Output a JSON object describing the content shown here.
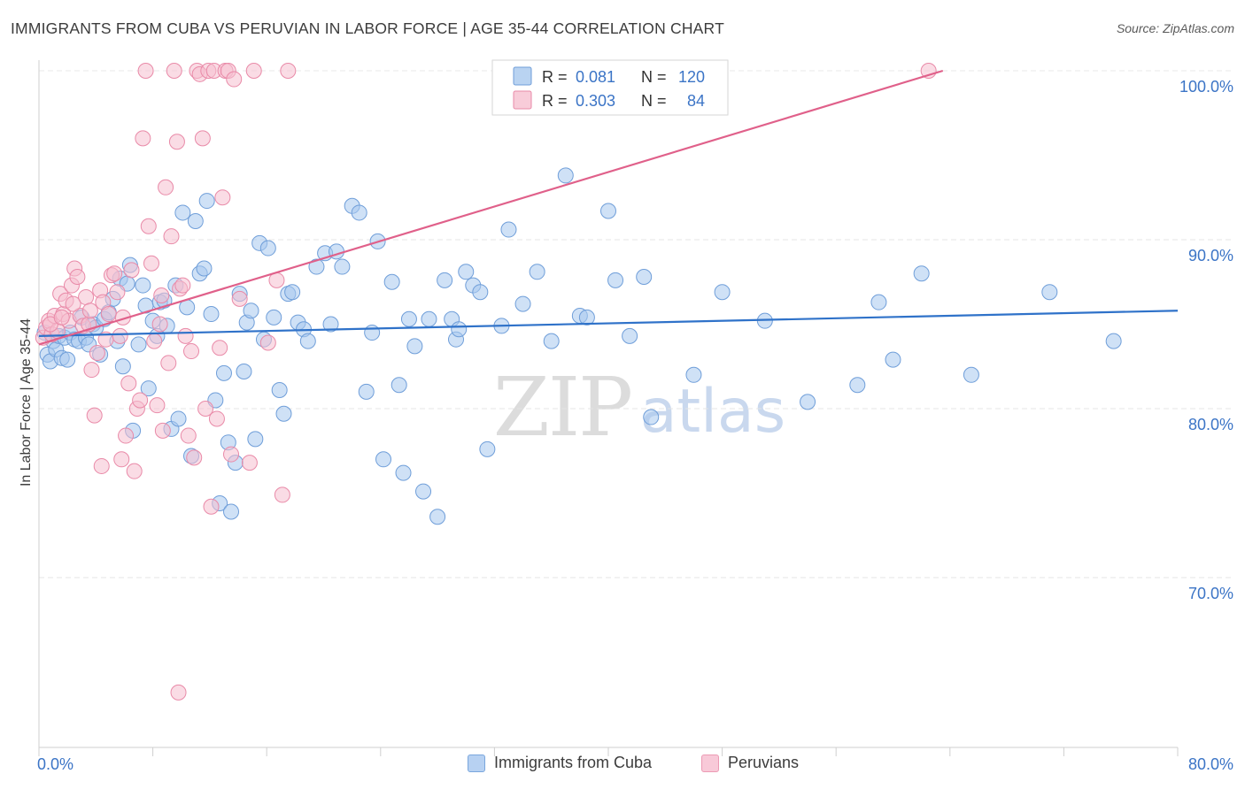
{
  "chart_data": {
    "type": "scatter",
    "title": "IMMIGRANTS FROM CUBA VS PERUVIAN IN LABOR FORCE | AGE 35-44 CORRELATION CHART",
    "source": "Source: ZipAtlas.com",
    "ylabel": "In Labor Force | Age 35-44",
    "xlim": [
      0,
      80
    ],
    "ylim": [
      60,
      102
    ],
    "x_tick_labels": [
      "0.0%",
      "80.0%"
    ],
    "y_ticks": [
      70,
      80,
      90,
      100
    ],
    "y_tick_labels": [
      "70.0%",
      "80.0%",
      "90.0%",
      "100.0%"
    ],
    "grid": true,
    "legend_position": "top-center",
    "watermark": "ZIPatlas",
    "series": [
      {
        "name": "Immigrants from Cuba",
        "color": "#a8c8ee",
        "stroke": "#6f9ed9",
        "line_color": "#2f72c9",
        "r_label": "R =",
        "r_value": "0.081",
        "n_label": "N =",
        "n_value": "120",
        "trend": [
          [
            0.0,
            84.3
          ],
          [
            80.0,
            85.8
          ]
        ],
        "points": [
          [
            0.4,
            84.5
          ],
          [
            0.6,
            83.2
          ],
          [
            0.8,
            82.8
          ],
          [
            1.0,
            84.0
          ],
          [
            1.2,
            83.5
          ],
          [
            1.4,
            84.3
          ],
          [
            1.6,
            83.0
          ],
          [
            1.8,
            84.2
          ],
          [
            2.0,
            82.9
          ],
          [
            2.2,
            84.5
          ],
          [
            2.5,
            84.1
          ],
          [
            2.8,
            84.0
          ],
          [
            3.0,
            85.4
          ],
          [
            3.3,
            84.2
          ],
          [
            3.5,
            83.8
          ],
          [
            3.8,
            85.0
          ],
          [
            4.0,
            84.8
          ],
          [
            4.3,
            83.2
          ],
          [
            4.6,
            85.3
          ],
          [
            4.9,
            85.7
          ],
          [
            5.2,
            86.5
          ],
          [
            5.5,
            84.0
          ],
          [
            5.7,
            87.7
          ],
          [
            5.9,
            82.5
          ],
          [
            6.2,
            87.4
          ],
          [
            6.4,
            88.5
          ],
          [
            6.6,
            78.7
          ],
          [
            7.0,
            83.8
          ],
          [
            7.3,
            87.3
          ],
          [
            7.5,
            86.1
          ],
          [
            7.7,
            81.2
          ],
          [
            8.0,
            85.2
          ],
          [
            8.3,
            84.3
          ],
          [
            8.5,
            86.3
          ],
          [
            8.8,
            86.4
          ],
          [
            9.0,
            84.9
          ],
          [
            9.3,
            78.8
          ],
          [
            9.6,
            87.3
          ],
          [
            9.8,
            79.4
          ],
          [
            10.1,
            91.6
          ],
          [
            10.4,
            86.0
          ],
          [
            10.7,
            77.2
          ],
          [
            11.0,
            91.1
          ],
          [
            11.3,
            88.0
          ],
          [
            11.6,
            88.3
          ],
          [
            11.8,
            92.3
          ],
          [
            12.1,
            85.6
          ],
          [
            12.4,
            80.5
          ],
          [
            12.7,
            74.4
          ],
          [
            13.0,
            82.1
          ],
          [
            13.3,
            78.0
          ],
          [
            13.5,
            73.9
          ],
          [
            13.8,
            76.8
          ],
          [
            14.1,
            86.8
          ],
          [
            14.4,
            82.2
          ],
          [
            14.6,
            85.1
          ],
          [
            14.9,
            85.8
          ],
          [
            15.2,
            78.2
          ],
          [
            15.5,
            89.8
          ],
          [
            15.8,
            84.1
          ],
          [
            16.1,
            89.5
          ],
          [
            16.5,
            85.4
          ],
          [
            16.9,
            81.1
          ],
          [
            17.2,
            79.7
          ],
          [
            17.5,
            86.8
          ],
          [
            17.8,
            86.9
          ],
          [
            18.2,
            85.1
          ],
          [
            18.6,
            84.7
          ],
          [
            18.9,
            84.0
          ],
          [
            19.5,
            88.4
          ],
          [
            20.1,
            89.2
          ],
          [
            20.5,
            85.0
          ],
          [
            20.9,
            89.3
          ],
          [
            21.3,
            88.4
          ],
          [
            22.0,
            92.0
          ],
          [
            22.5,
            91.6
          ],
          [
            23.0,
            81.0
          ],
          [
            23.4,
            84.5
          ],
          [
            23.8,
            89.9
          ],
          [
            24.2,
            77.0
          ],
          [
            24.8,
            87.5
          ],
          [
            25.3,
            81.4
          ],
          [
            25.6,
            76.2
          ],
          [
            26.0,
            85.3
          ],
          [
            26.4,
            83.7
          ],
          [
            27.0,
            75.1
          ],
          [
            27.4,
            85.3
          ],
          [
            28.0,
            73.6
          ],
          [
            28.5,
            87.6
          ],
          [
            29.0,
            85.3
          ],
          [
            29.3,
            84.1
          ],
          [
            29.5,
            84.7
          ],
          [
            30.0,
            88.1
          ],
          [
            30.5,
            87.3
          ],
          [
            31.0,
            86.9
          ],
          [
            31.5,
            77.6
          ],
          [
            32.5,
            84.9
          ],
          [
            33.0,
            90.6
          ],
          [
            34.0,
            86.2
          ],
          [
            35.0,
            88.1
          ],
          [
            36.0,
            84.0
          ],
          [
            37.0,
            93.8
          ],
          [
            38.0,
            85.5
          ],
          [
            38.5,
            85.4
          ],
          [
            40.0,
            91.7
          ],
          [
            40.5,
            87.6
          ],
          [
            41.5,
            84.3
          ],
          [
            42.5,
            87.8
          ],
          [
            43.0,
            79.5
          ],
          [
            46.0,
            82.0
          ],
          [
            48.0,
            86.9
          ],
          [
            51.0,
            85.2
          ],
          [
            54.0,
            80.4
          ],
          [
            57.5,
            81.4
          ],
          [
            59.0,
            86.3
          ],
          [
            60.0,
            82.9
          ],
          [
            62.0,
            88.0
          ],
          [
            65.5,
            82.0
          ],
          [
            71.0,
            86.9
          ],
          [
            75.5,
            84.0
          ]
        ]
      },
      {
        "name": "Peruvians",
        "color": "#f6bfd0",
        "stroke": "#e98aa8",
        "line_color": "#e0608a",
        "r_label": "R =",
        "r_value": "0.303",
        "n_label": "N =",
        "n_value": "84",
        "trend": [
          [
            0.0,
            83.8
          ],
          [
            63.5,
            100.0
          ]
        ],
        "points": [
          [
            0.3,
            84.2
          ],
          [
            0.5,
            84.8
          ],
          [
            0.7,
            85.2
          ],
          [
            0.9,
            84.4
          ],
          [
            1.1,
            85.5
          ],
          [
            1.3,
            84.6
          ],
          [
            1.5,
            86.8
          ],
          [
            1.7,
            85.6
          ],
          [
            1.9,
            86.4
          ],
          [
            2.1,
            85.2
          ],
          [
            2.3,
            87.3
          ],
          [
            2.5,
            88.3
          ],
          [
            2.7,
            87.8
          ],
          [
            2.9,
            85.5
          ],
          [
            3.1,
            84.9
          ],
          [
            3.3,
            86.6
          ],
          [
            3.5,
            85.0
          ],
          [
            3.7,
            82.3
          ],
          [
            3.9,
            79.6
          ],
          [
            4.1,
            83.3
          ],
          [
            4.3,
            87.0
          ],
          [
            4.5,
            86.3
          ],
          [
            4.7,
            84.1
          ],
          [
            4.9,
            85.6
          ],
          [
            5.1,
            87.9
          ],
          [
            5.3,
            88.0
          ],
          [
            5.5,
            86.9
          ],
          [
            5.7,
            84.3
          ],
          [
            5.9,
            85.4
          ],
          [
            6.1,
            78.4
          ],
          [
            6.3,
            81.5
          ],
          [
            6.5,
            88.2
          ],
          [
            6.7,
            76.3
          ],
          [
            6.9,
            80.0
          ],
          [
            7.1,
            80.5
          ],
          [
            7.3,
            96.0
          ],
          [
            7.5,
            100.0
          ],
          [
            7.7,
            90.8
          ],
          [
            7.9,
            88.6
          ],
          [
            8.1,
            84.0
          ],
          [
            8.3,
            80.2
          ],
          [
            8.5,
            85.0
          ],
          [
            8.7,
            78.7
          ],
          [
            8.9,
            93.1
          ],
          [
            9.1,
            82.7
          ],
          [
            9.3,
            90.2
          ],
          [
            9.5,
            100.0
          ],
          [
            9.7,
            95.8
          ],
          [
            9.9,
            87.1
          ],
          [
            10.1,
            87.3
          ],
          [
            10.3,
            84.3
          ],
          [
            10.5,
            78.4
          ],
          [
            10.7,
            83.4
          ],
          [
            10.9,
            77.1
          ],
          [
            11.1,
            100.0
          ],
          [
            11.3,
            99.8
          ],
          [
            11.5,
            96.0
          ],
          [
            11.7,
            80.0
          ],
          [
            11.9,
            100.0
          ],
          [
            12.1,
            74.2
          ],
          [
            12.3,
            100.0
          ],
          [
            12.5,
            79.4
          ],
          [
            12.7,
            83.6
          ],
          [
            12.9,
            92.5
          ],
          [
            13.1,
            100.0
          ],
          [
            13.3,
            100.0
          ],
          [
            13.5,
            77.3
          ],
          [
            13.7,
            99.5
          ],
          [
            14.1,
            86.5
          ],
          [
            15.1,
            100.0
          ],
          [
            16.1,
            83.9
          ],
          [
            16.7,
            87.6
          ],
          [
            17.1,
            74.9
          ],
          [
            17.5,
            100.0
          ],
          [
            0.8,
            85.0
          ],
          [
            1.6,
            85.4
          ],
          [
            2.4,
            86.2
          ],
          [
            3.6,
            85.8
          ],
          [
            4.4,
            76.6
          ],
          [
            5.8,
            77.0
          ],
          [
            9.8,
            63.2
          ],
          [
            14.8,
            76.8
          ],
          [
            62.5,
            100.0
          ],
          [
            8.6,
            86.7
          ]
        ]
      }
    ]
  }
}
